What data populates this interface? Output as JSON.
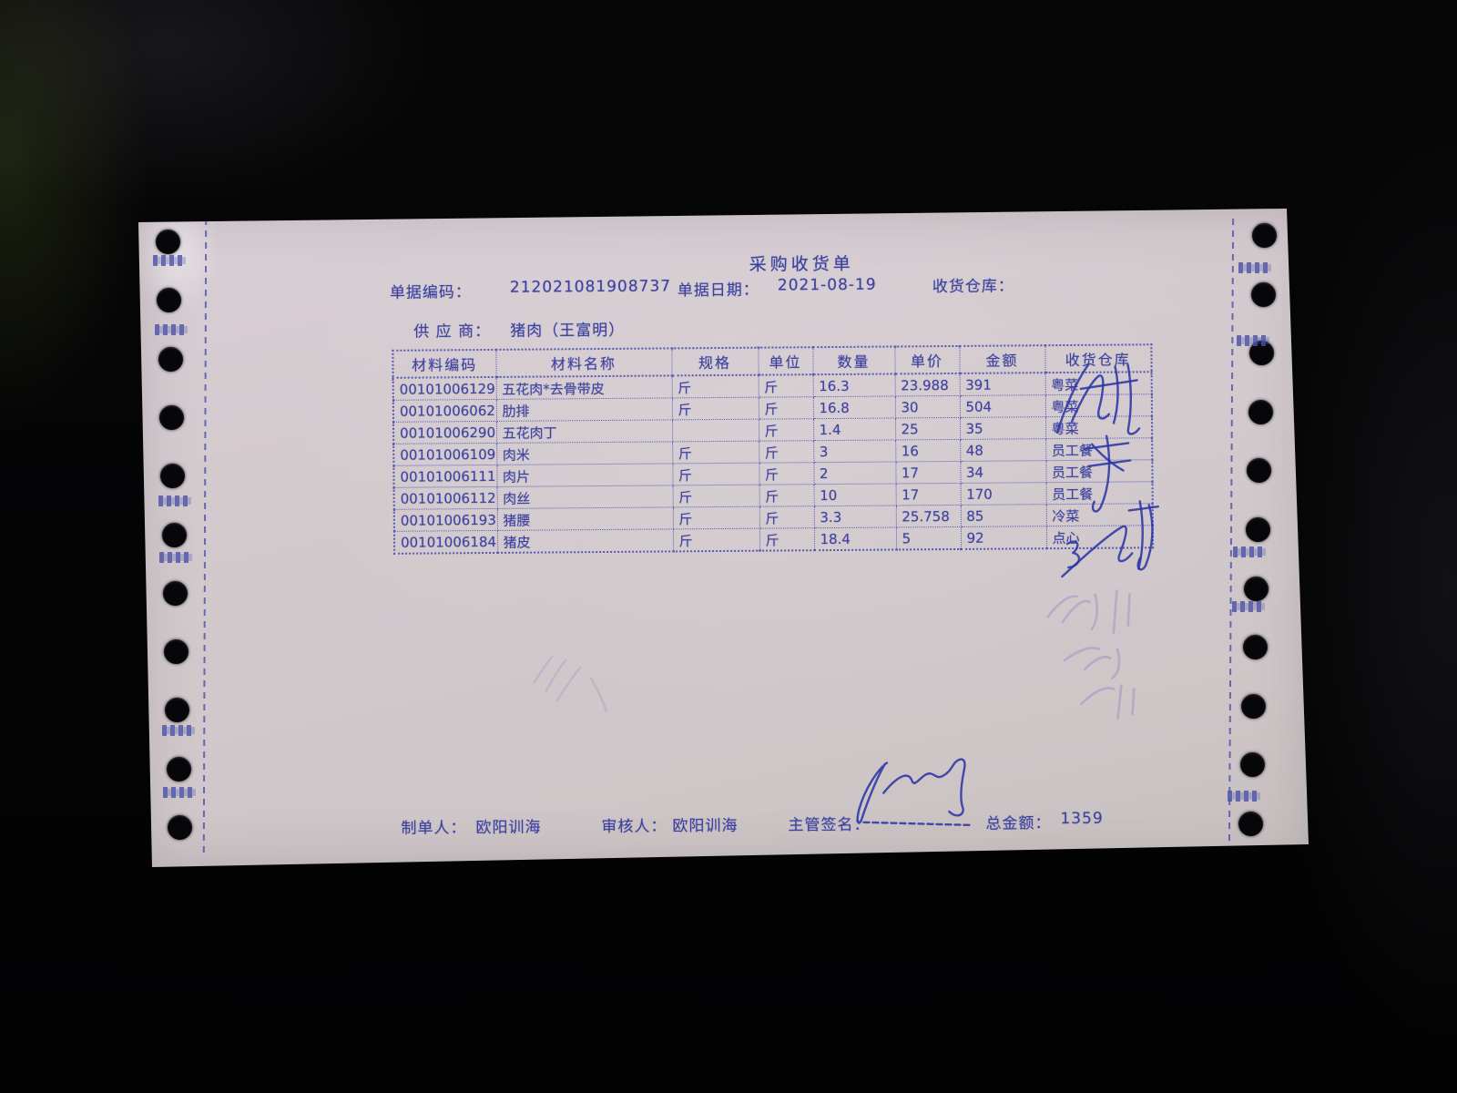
{
  "document": {
    "title": "采购收货单",
    "doc_no_label": "单据编码：",
    "doc_no": "212021081908737",
    "date_label": "单据日期：",
    "date": "2021-08-19",
    "warehouse_label": "收货仓库：",
    "supplier_label": "供 应 商：",
    "supplier": "猪肉（王富明）"
  },
  "table": {
    "headers": [
      "材料编码",
      "材料名称",
      "规格",
      "单位",
      "数量",
      "单价",
      "金额",
      "收货仓库"
    ],
    "rows": [
      [
        "00101006129",
        "五花肉*去骨带皮",
        "斤",
        "斤",
        "16.3",
        "23.988",
        "391",
        "粤菜"
      ],
      [
        "00101006062",
        "肋排",
        "斤",
        "斤",
        "16.8",
        "30",
        "504",
        "粤菜"
      ],
      [
        "00101006290",
        "五花肉丁",
        "",
        "斤",
        "1.4",
        "25",
        "35",
        "粤菜"
      ],
      [
        "00101006109",
        "肉米",
        "斤",
        "斤",
        "3",
        "16",
        "48",
        "员工餐"
      ],
      [
        "00101006111",
        "肉片",
        "斤",
        "斤",
        "2",
        "17",
        "34",
        "员工餐"
      ],
      [
        "00101006112",
        "肉丝",
        "斤",
        "斤",
        "10",
        "17",
        "170",
        "员工餐"
      ],
      [
        "00101006193",
        "猪腰",
        "斤",
        "斤",
        "3.3",
        "25.758",
        "85",
        "冷菜"
      ],
      [
        "00101006184",
        "猪皮",
        "斤",
        "斤",
        "18.4",
        "5",
        "92",
        "点心"
      ]
    ]
  },
  "footer": {
    "preparer_label": "制单人：",
    "preparer": "欧阳训海",
    "reviewer_label": "审核人：",
    "reviewer": "欧阳训海",
    "supervisor_label": "主管签名：",
    "total_label": "总金额：",
    "total": "1359"
  },
  "colors": {
    "print_ink_blue": "#3d42a0",
    "handwriting_blue": "#2c35a5",
    "paper": "#d2c9ce",
    "background": "#040405"
  }
}
